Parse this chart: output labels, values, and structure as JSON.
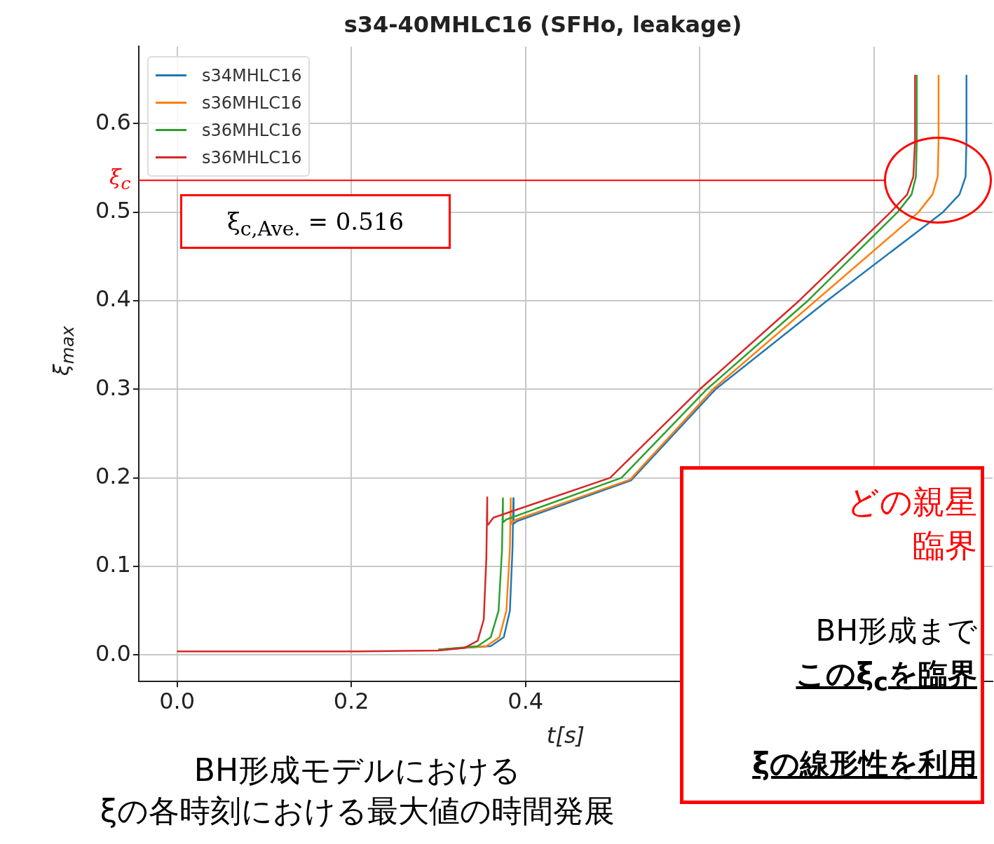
{
  "chart_data": {
    "type": "line",
    "title": "s34-40MHLC16 (SFHo, leakage)",
    "xlabel": "t[s]",
    "ylabel": "ξ$_{max}$",
    "xlim": [
      -0.044,
      0.936
    ],
    "ylim": [
      -0.03,
      0.687
    ],
    "xticks": [
      {
        "value": 0,
        "label": "0.0"
      },
      {
        "value": 0.2,
        "label": "0.2"
      },
      {
        "value": 0.4,
        "label": "0.4"
      },
      {
        "value": 0.6,
        "label": null
      },
      {
        "value": 0.8,
        "label": null
      }
    ],
    "yticks": [
      {
        "value": 0,
        "label": "0.0"
      },
      {
        "value": 0.1,
        "label": "0.1"
      },
      {
        "value": 0.2,
        "label": "0.2"
      },
      {
        "value": 0.3,
        "label": "0.3"
      },
      {
        "value": 0.4,
        "label": "0.4"
      },
      {
        "value": 0.5,
        "label": "0.5"
      },
      {
        "value": 0.6,
        "label": "0.6"
      }
    ],
    "grid": true,
    "legend": "top left",
    "series": [
      {
        "name": "s34MHLC16",
        "color": "#1f77b4",
        "x": [
          0.3,
          0.36,
          0.375,
          0.382,
          0.385,
          0.386,
          0.386,
          0.3865,
          0.39,
          0.521,
          0.618,
          0.746,
          0.879,
          0.898,
          0.905,
          0.906,
          0.906
        ],
        "values": [
          0.006,
          0.01,
          0.02,
          0.05,
          0.12,
          0.177,
          0.148,
          0.148,
          0.151,
          0.197,
          0.3,
          0.4,
          0.5,
          0.52,
          0.54,
          0.58,
          0.655
        ]
      },
      {
        "name": "s36MHLC16",
        "color": "#ff7f0e",
        "x": [
          0.3,
          0.355,
          0.37,
          0.378,
          0.382,
          0.383,
          0.383,
          0.3835,
          0.387,
          0.52,
          0.615,
          0.733,
          0.851,
          0.867,
          0.873,
          0.874,
          0.874
        ],
        "values": [
          0.006,
          0.01,
          0.02,
          0.05,
          0.12,
          0.177,
          0.148,
          0.148,
          0.152,
          0.198,
          0.3,
          0.4,
          0.5,
          0.52,
          0.54,
          0.58,
          0.655
        ]
      },
      {
        "name": "s36MHLC16",
        "color": "#2ca02c",
        "x": [
          0.3,
          0.345,
          0.36,
          0.369,
          0.373,
          0.374,
          0.374,
          0.3745,
          0.378,
          0.51,
          0.608,
          0.724,
          0.827,
          0.843,
          0.848,
          0.849,
          0.849
        ],
        "values": [
          0.006,
          0.01,
          0.02,
          0.05,
          0.12,
          0.177,
          0.15,
          0.15,
          0.153,
          0.2,
          0.3,
          0.4,
          0.5,
          0.52,
          0.54,
          0.58,
          0.655
        ]
      },
      {
        "name": "s36MHLC16",
        "color": "#d62728",
        "x": [
          0,
          0.2,
          0.3,
          0.33,
          0.345,
          0.352,
          0.355,
          0.356,
          0.356,
          0.357,
          0.363,
          0.497,
          0.6,
          0.714,
          0.819,
          0.838,
          0.845,
          0.847,
          0.847
        ],
        "values": [
          0.004,
          0.004,
          0.005,
          0.008,
          0.016,
          0.04,
          0.11,
          0.178,
          0.147,
          0.147,
          0.155,
          0.2,
          0.3,
          0.4,
          0.5,
          0.52,
          0.54,
          0.58,
          0.655
        ]
      }
    ],
    "ref_lines": [
      {
        "axis": "y",
        "value": 0.536,
        "label": "ξ$_{c}$",
        "color": "#ff0000"
      }
    ],
    "annotations": [
      "ξ$_{c,Ave.}$ = 0.516",
      "どの親星",
      "臨界",
      "BH形成まで",
      "このξ$_{c}$を臨界",
      "ξの線形性を利用",
      "BH形成モデルにおける",
      "ξの各時刻における最大値の時間発展"
    ]
  }
}
